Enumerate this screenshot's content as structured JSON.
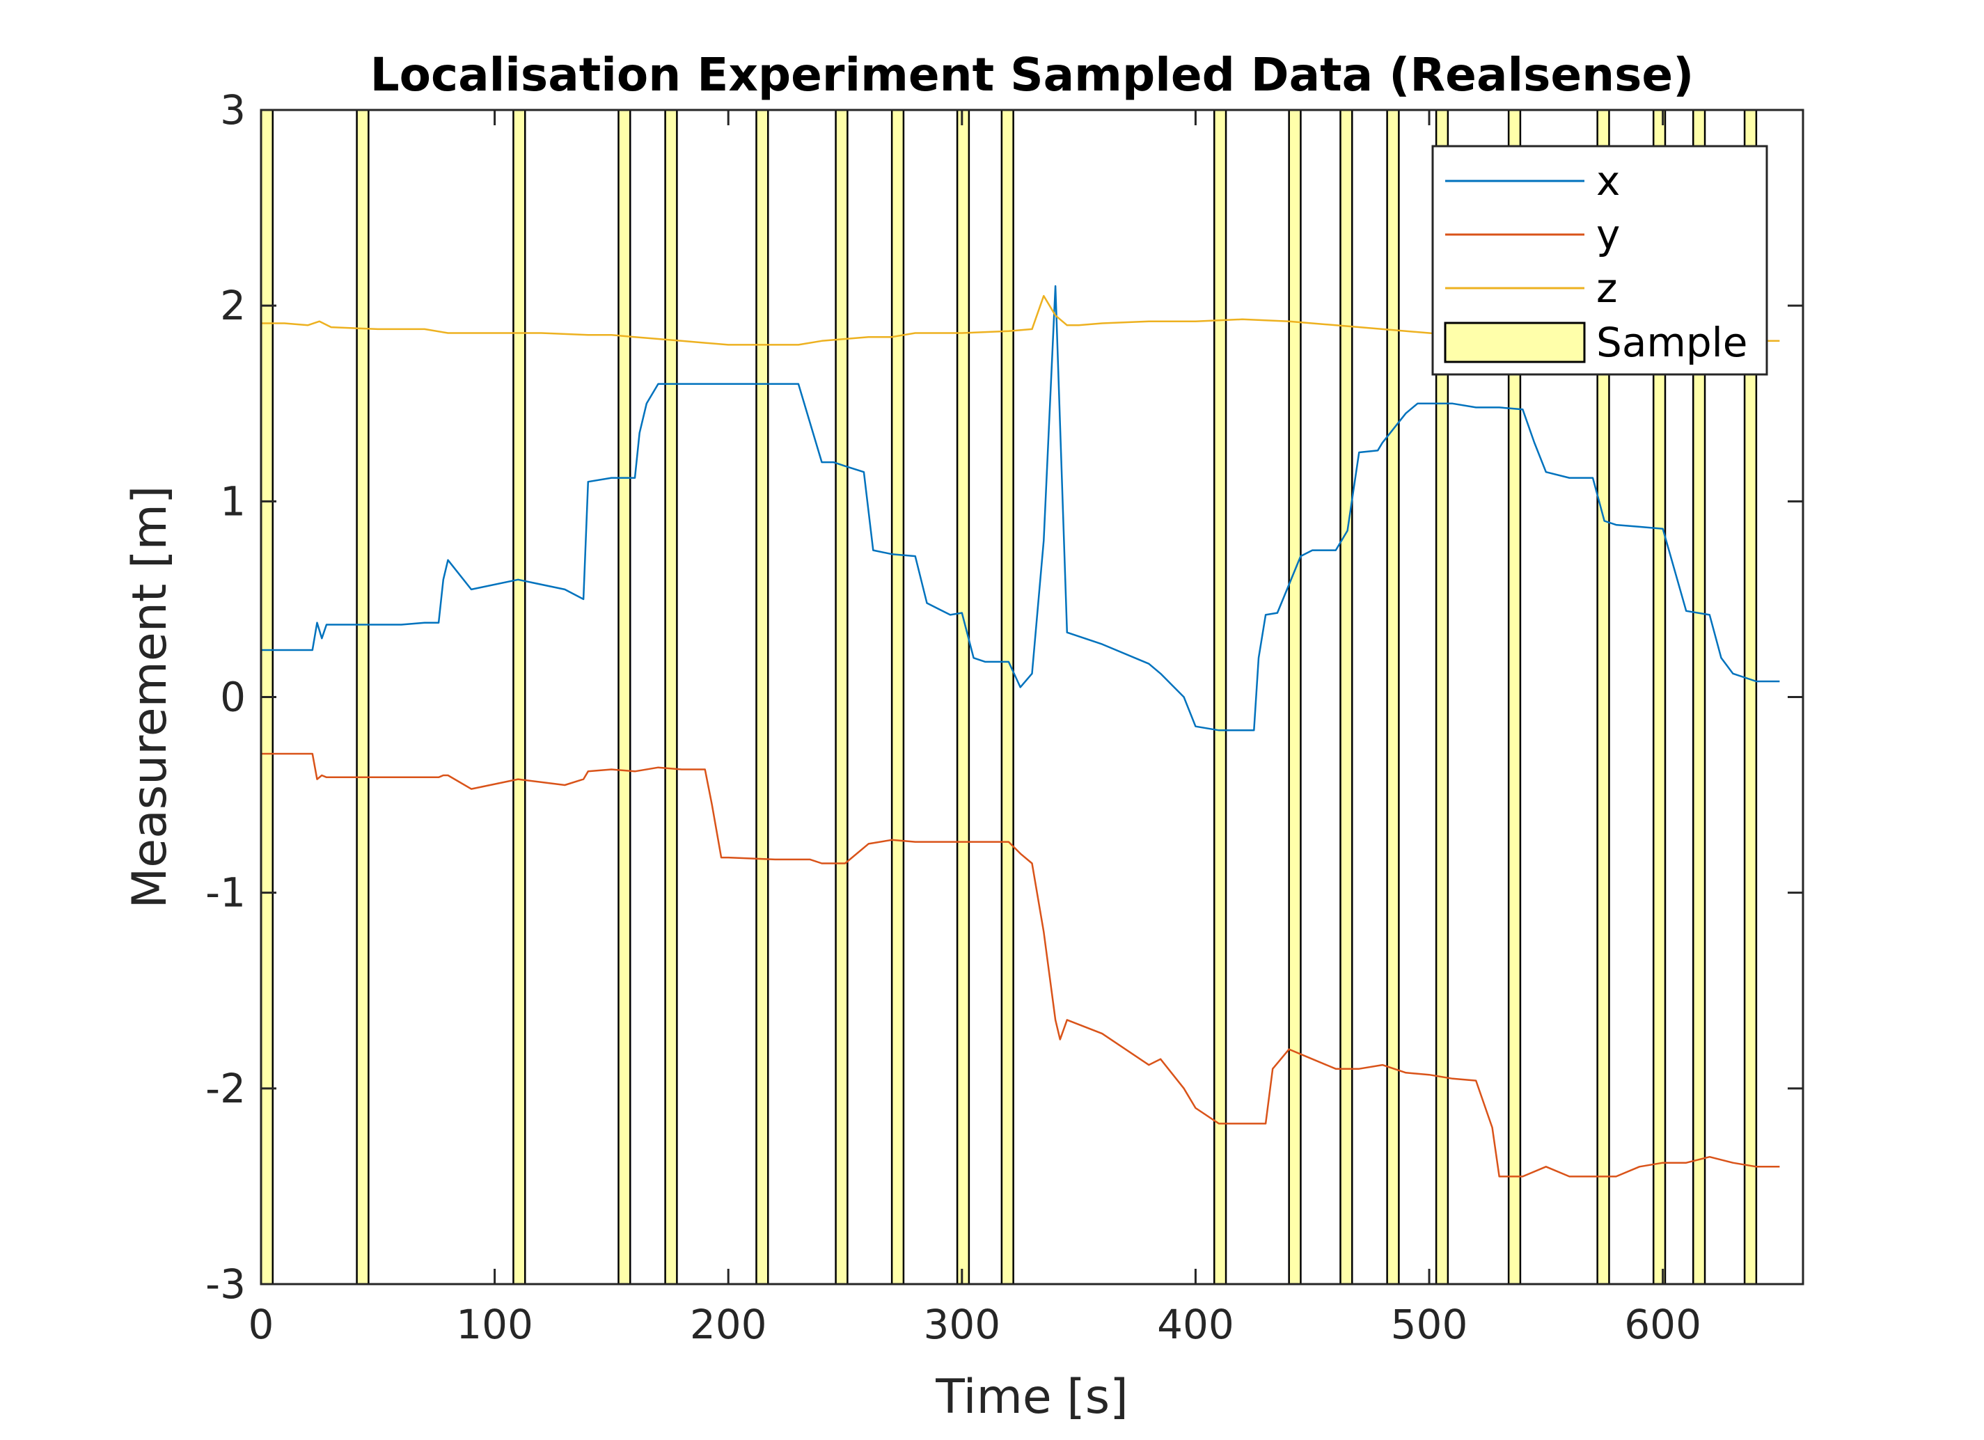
{
  "chart_data": {
    "type": "line",
    "title": "Localisation Experiment Sampled Data (Realsense)",
    "xlabel": "Time [s]",
    "ylabel": "Measurement [m]",
    "xlim": [
      0,
      660
    ],
    "ylim": [
      -3,
      3
    ],
    "x_ticks": [
      0,
      100,
      200,
      300,
      400,
      500,
      600
    ],
    "y_ticks": [
      -3,
      -2,
      -1,
      0,
      1,
      2,
      3
    ],
    "x_tick_labels": [
      "0",
      "100",
      "200",
      "300",
      "400",
      "500",
      "600"
    ],
    "y_tick_labels": [
      "-3",
      "-2",
      "-1",
      "0",
      "1",
      "2",
      "3"
    ],
    "grid": false,
    "legend_position": "top-right",
    "series": [
      {
        "name": "x",
        "color": "#0072BD",
        "x": [
          0,
          22,
          24,
          26,
          28,
          40,
          60,
          70,
          76,
          78,
          80,
          90,
          110,
          130,
          138,
          140,
          150,
          160,
          162,
          165,
          170,
          180,
          200,
          220,
          230,
          235,
          240,
          245,
          250,
          258,
          262,
          270,
          280,
          285,
          290,
          295,
          300,
          305,
          310,
          320,
          325,
          330,
          335,
          340,
          345,
          360,
          380,
          385,
          395,
          400,
          410,
          420,
          425,
          427,
          430,
          435,
          445,
          450,
          460,
          465,
          470,
          478,
          480,
          490,
          495,
          500,
          510,
          520,
          530,
          540,
          545,
          550,
          560,
          570,
          575,
          580,
          590,
          600,
          610,
          620,
          625,
          630,
          640,
          650
        ],
        "y": [
          0.24,
          0.24,
          0.38,
          0.3,
          0.37,
          0.37,
          0.37,
          0.38,
          0.38,
          0.6,
          0.7,
          0.55,
          0.6,
          0.55,
          0.5,
          1.1,
          1.12,
          1.12,
          1.35,
          1.5,
          1.6,
          1.6,
          1.6,
          1.6,
          1.6,
          1.4,
          1.2,
          1.2,
          1.18,
          1.15,
          0.75,
          0.73,
          0.72,
          0.48,
          0.45,
          0.42,
          0.43,
          0.2,
          0.18,
          0.18,
          0.05,
          0.12,
          0.8,
          2.1,
          0.33,
          0.27,
          0.17,
          0.12,
          0.0,
          -0.15,
          -0.17,
          -0.17,
          -0.17,
          0.2,
          0.42,
          0.43,
          0.72,
          0.75,
          0.75,
          0.85,
          1.25,
          1.26,
          1.3,
          1.45,
          1.5,
          1.5,
          1.5,
          1.48,
          1.48,
          1.47,
          1.3,
          1.15,
          1.12,
          1.12,
          0.9,
          0.88,
          0.87,
          0.86,
          0.44,
          0.42,
          0.2,
          0.12,
          0.08,
          0.08
        ]
      },
      {
        "name": "y",
        "color": "#D95319",
        "x": [
          0,
          22,
          24,
          26,
          28,
          40,
          60,
          76,
          78,
          80,
          90,
          110,
          130,
          138,
          140,
          150,
          160,
          170,
          180,
          190,
          193,
          197,
          200,
          220,
          230,
          235,
          240,
          250,
          260,
          270,
          280,
          290,
          300,
          310,
          320,
          325,
          330,
          335,
          340,
          342,
          345,
          360,
          380,
          385,
          395,
          400,
          410,
          420,
          430,
          433,
          440,
          450,
          460,
          470,
          480,
          490,
          500,
          510,
          520,
          527,
          530,
          540,
          550,
          560,
          570,
          580,
          590,
          600,
          610,
          620,
          630,
          640,
          650
        ],
        "y": [
          -0.29,
          -0.29,
          -0.42,
          -0.4,
          -0.41,
          -0.41,
          -0.41,
          -0.41,
          -0.4,
          -0.4,
          -0.47,
          -0.42,
          -0.45,
          -0.42,
          -0.38,
          -0.37,
          -0.38,
          -0.36,
          -0.37,
          -0.37,
          -0.55,
          -0.82,
          -0.82,
          -0.83,
          -0.83,
          -0.83,
          -0.85,
          -0.85,
          -0.75,
          -0.73,
          -0.74,
          -0.74,
          -0.74,
          -0.74,
          -0.74,
          -0.8,
          -0.85,
          -1.2,
          -1.65,
          -1.75,
          -1.65,
          -1.72,
          -1.88,
          -1.85,
          -2.0,
          -2.1,
          -2.18,
          -2.18,
          -2.18,
          -1.9,
          -1.8,
          -1.85,
          -1.9,
          -1.9,
          -1.88,
          -1.92,
          -1.93,
          -1.95,
          -1.96,
          -2.2,
          -2.45,
          -2.45,
          -2.4,
          -2.45,
          -2.45,
          -2.45,
          -2.4,
          -2.38,
          -2.38,
          -2.35,
          -2.38,
          -2.4,
          -2.4
        ]
      },
      {
        "name": "z",
        "color": "#EDB120",
        "x": [
          0,
          10,
          20,
          25,
          30,
          50,
          70,
          80,
          100,
          120,
          140,
          150,
          160,
          170,
          180,
          200,
          220,
          230,
          240,
          250,
          260,
          270,
          280,
          300,
          320,
          330,
          335,
          340,
          345,
          350,
          360,
          380,
          400,
          420,
          440,
          460,
          480,
          500,
          520,
          540,
          560,
          580,
          600,
          620,
          640,
          650
        ],
        "y": [
          1.91,
          1.91,
          1.9,
          1.92,
          1.89,
          1.88,
          1.88,
          1.86,
          1.86,
          1.86,
          1.85,
          1.85,
          1.84,
          1.83,
          1.82,
          1.8,
          1.8,
          1.8,
          1.82,
          1.83,
          1.84,
          1.84,
          1.86,
          1.86,
          1.87,
          1.88,
          2.05,
          1.95,
          1.9,
          1.9,
          1.91,
          1.92,
          1.92,
          1.93,
          1.92,
          1.9,
          1.88,
          1.86,
          1.84,
          1.84,
          1.84,
          1.83,
          1.82,
          1.82,
          1.82,
          1.82
        ]
      }
    ],
    "sample_regions": {
      "name": "Sample",
      "color": "#FFFFAA",
      "edge_color": "#000000",
      "ranges": [
        [
          0,
          5
        ],
        [
          41,
          46
        ],
        [
          108,
          113
        ],
        [
          153,
          158
        ],
        [
          173,
          178
        ],
        [
          212,
          217
        ],
        [
          246,
          251
        ],
        [
          270,
          275
        ],
        [
          298,
          303
        ],
        [
          317,
          322
        ],
        [
          408,
          413
        ],
        [
          440,
          445
        ],
        [
          462,
          467
        ],
        [
          482,
          487
        ],
        [
          503,
          508
        ],
        [
          534,
          539
        ],
        [
          572,
          577
        ],
        [
          596,
          601
        ],
        [
          613,
          618
        ],
        [
          635,
          640
        ]
      ]
    }
  }
}
